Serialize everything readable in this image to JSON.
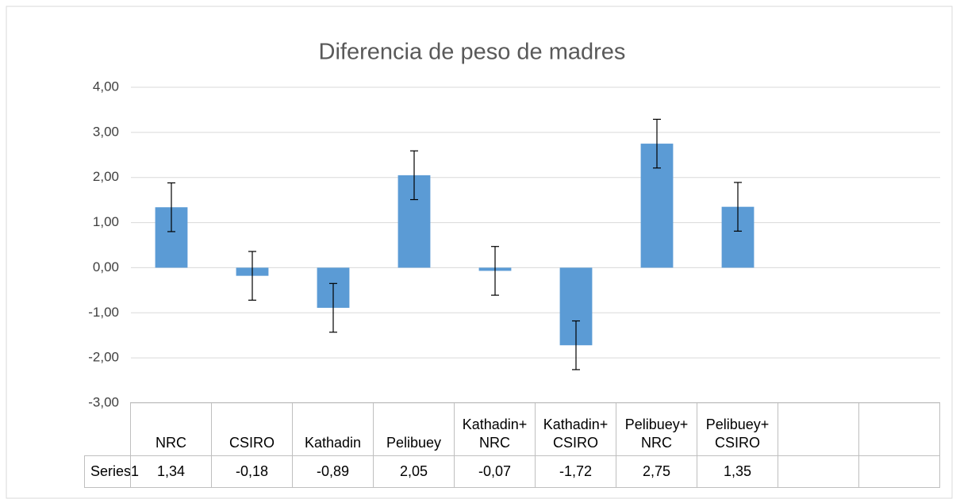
{
  "chart_data": {
    "type": "bar",
    "title": "Diferencia de peso de madres",
    "categories": [
      "NRC",
      "CSIRO",
      "Kathadin",
      "Pelibuey",
      "Kathadin+ NRC",
      "Kathadin+ CSIRO",
      "Pelibuey+ NRC",
      "Pelibuey+ CSIRO",
      null,
      null
    ],
    "series": [
      {
        "name": "Series1",
        "color": "#5b9bd5",
        "values": [
          1.34,
          -0.18,
          -0.89,
          2.05,
          -0.07,
          -1.72,
          2.75,
          1.35,
          null,
          null
        ],
        "value_labels": [
          "1,34",
          "-0,18",
          "-0,89",
          "2,05",
          "-0,07",
          "-1,72",
          "2,75",
          "1,35",
          null,
          null
        ],
        "errors": [
          0.54,
          0.54,
          0.54,
          0.54,
          0.54,
          0.54,
          0.54,
          0.54,
          null,
          null
        ]
      }
    ],
    "ylim": [
      -3,
      4
    ],
    "yticks": [
      {
        "value": -3,
        "label": "-3,00"
      },
      {
        "value": -2,
        "label": "-2,00"
      },
      {
        "value": -1,
        "label": "-1,00"
      },
      {
        "value": 0,
        "label": "0,00"
      },
      {
        "value": 1,
        "label": "1,00"
      },
      {
        "value": 2,
        "label": "2,00"
      },
      {
        "value": 3,
        "label": "3,00"
      },
      {
        "value": 4,
        "label": "4,00"
      }
    ],
    "grid": true
  }
}
